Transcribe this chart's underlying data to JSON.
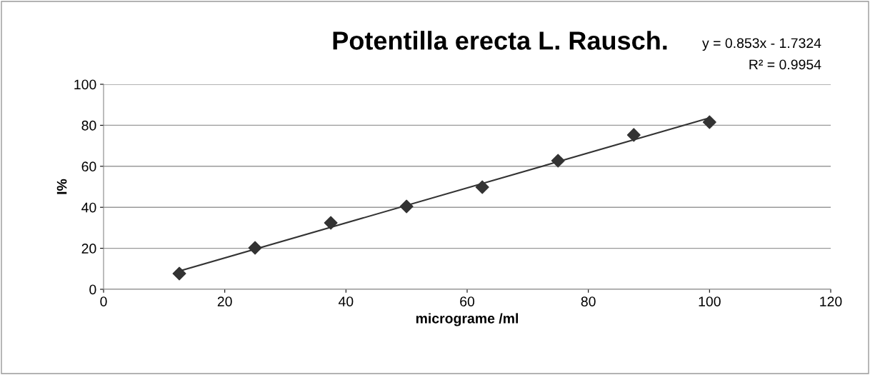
{
  "chart_data": {
    "type": "scatter",
    "title": "Potentilla erecta L. Rausch.",
    "xlabel": "micrograme /ml",
    "ylabel": "I%",
    "x": [
      12.5,
      25,
      37.5,
      50,
      62.5,
      75,
      87.5,
      100
    ],
    "series": [
      {
        "color": "#333333",
        "values": [
          7.7,
          20.2,
          32.4,
          40.4,
          49.8,
          62.7,
          75.3,
          81.5
        ],
        "marker": "diamond"
      },
      {
        "type": "line",
        "color": "#333333",
        "x": [
          12.5,
          100
        ],
        "values": [
          8.9,
          83.6
        ],
        "line_style": "solid"
      }
    ],
    "xlim": [
      0,
      120
    ],
    "xticks": [
      0,
      20,
      40,
      60,
      80,
      100,
      120
    ],
    "ylim": [
      0,
      100
    ],
    "yticks": [
      0,
      20,
      40,
      60,
      80,
      100
    ],
    "grid": "y",
    "annotations": [
      "y = 0.853x - 1.7324",
      "R² = 0.9954"
    ]
  }
}
